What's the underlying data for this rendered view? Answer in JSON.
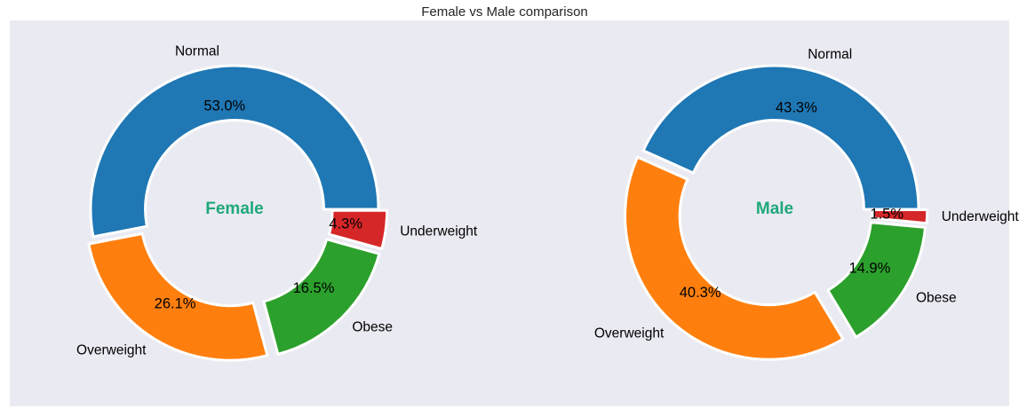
{
  "figure": {
    "title": "Female vs Male comparison",
    "background": "#ffffff",
    "axes_background": "#eaeaf2",
    "center_label_color": "#1fa87a",
    "wedge_edge_color": "#ffffff"
  },
  "chart_data": [
    {
      "type": "pie",
      "style": "donut",
      "center_label": "Female",
      "start_angle_deg": 0,
      "direction": "counterclockwise",
      "categories": [
        "Normal",
        "Overweight",
        "Obese",
        "Underweight"
      ],
      "values": [
        53.0,
        26.1,
        16.5,
        4.3
      ],
      "value_labels": [
        "53.0%",
        "26.1%",
        "16.5%",
        "4.3%"
      ],
      "explode": [
        0,
        0.06,
        0.06,
        0.06
      ],
      "colors": [
        "#1f77b4",
        "#ff7f0e",
        "#2ca02c",
        "#d62728"
      ]
    },
    {
      "type": "pie",
      "style": "donut",
      "center_label": "Male",
      "start_angle_deg": 0,
      "direction": "counterclockwise",
      "categories": [
        "Normal",
        "Overweight",
        "Obese",
        "Underweight"
      ],
      "values": [
        43.3,
        40.3,
        14.9,
        1.5
      ],
      "value_labels": [
        "43.3%",
        "40.3%",
        "14.9%",
        "1.5%"
      ],
      "explode": [
        0,
        0.06,
        0.06,
        0.06
      ],
      "colors": [
        "#1f77b4",
        "#ff7f0e",
        "#2ca02c",
        "#d62728"
      ]
    }
  ]
}
